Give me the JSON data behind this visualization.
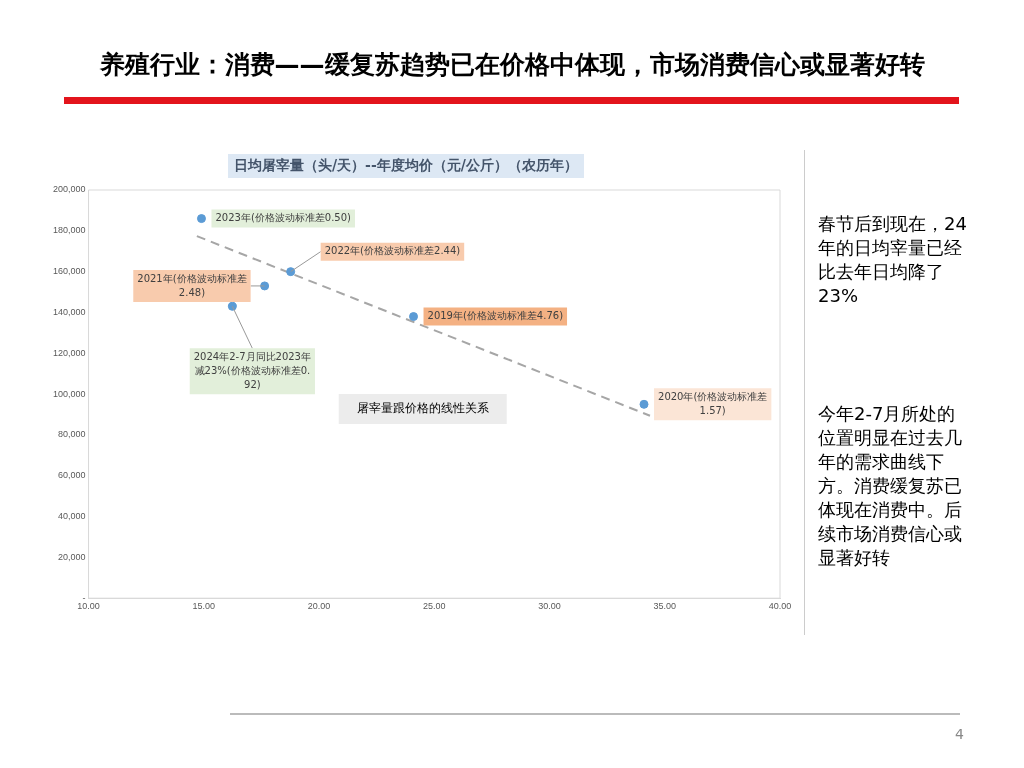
{
  "chart_data": {
    "type": "scatter",
    "title": "养殖行业：消费——缓复苏趋势已在价格中体现，市场消费信心或显著好转",
    "subtitle": "日均屠宰量（头/天）--年度均价（元/公斤）（农历年）",
    "x": [
      14.9,
      18.77,
      17.64,
      16.24,
      24.1,
      34.1
    ],
    "series": [
      {
        "type": "scatter",
        "color": "#5b9bd5",
        "values": [
          186000,
          160000,
          153000,
          143000,
          138000,
          95000
        ]
      },
      {
        "type": "line",
        "color": "#a6a6a6",
        "line_style": "dashed",
        "marker": "none",
        "x": [
          14.7,
          34.36
        ],
        "values": [
          177400,
          89400
        ]
      }
    ],
    "xlim": [
      10,
      40
    ],
    "xticks": [
      {
        "value": 10,
        "label": "10.00"
      },
      {
        "value": 15,
        "label": "15.00"
      },
      {
        "value": 20,
        "label": "20.00"
      },
      {
        "value": 25,
        "label": "25.00"
      },
      {
        "value": 30,
        "label": "30.00"
      },
      {
        "value": 35,
        "label": "35.00"
      },
      {
        "value": 40,
        "label": "40.00"
      }
    ],
    "ylim": [
      0,
      200000
    ],
    "yticks": [
      {
        "value": 0,
        "label": "-"
      },
      {
        "value": 20000,
        "label": "20,000"
      },
      {
        "value": 40000,
        "label": "40,000"
      },
      {
        "value": 60000,
        "label": "60,000"
      },
      {
        "value": 80000,
        "label": "80,000"
      },
      {
        "value": 100000,
        "label": "100,000"
      },
      {
        "value": 120000,
        "label": "120,000"
      },
      {
        "value": 140000,
        "label": "140,000"
      },
      {
        "value": 160000,
        "label": "160,000"
      },
      {
        "value": 180000,
        "label": "180,000"
      },
      {
        "value": 200000,
        "label": "200,000"
      }
    ],
    "grid": false,
    "legend": false,
    "marker": "circle",
    "annotations": [
      {
        "text": "2023年(价格波动标准差0.50)",
        "x": 14.9,
        "y": 186000
      },
      {
        "text": "2022年(价格波动标准差2.44)",
        "x": 18.77,
        "y": 160000
      },
      {
        "text": "2021年(价格波动标准差2.48)",
        "x": 17.64,
        "y": 153000
      },
      {
        "text": "2024年2-7月同比2023年减23%(价格波动标准差0.92)",
        "x": 16.24,
        "y": 143000
      },
      {
        "text": "2019年(价格波动标准差4.76)",
        "x": 24.1,
        "y": 138000
      },
      {
        "text": "2020年(价格波动标准差1.57)",
        "x": 34.1,
        "y": 95000
      },
      "屠宰量跟价格的线性关系",
      "春节后到现在，24年的日均宰量已经比去年日均降了23%",
      "今年2-7月所处的位置明显在过去几年的需求曲线下方。消费缓复苏已体现在消费中。后续市场消费信心或显著好转",
      "4"
    ]
  }
}
